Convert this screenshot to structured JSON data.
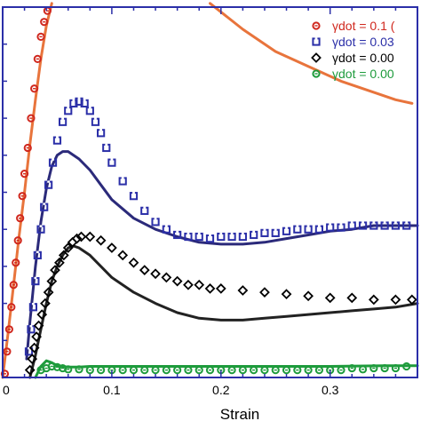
{
  "chart_data": {
    "type": "scatter",
    "title": "",
    "xlabel": "Strain",
    "ylabel": "",
    "xlim": [
      0,
      0.38
    ],
    "ylim": [
      0,
      1
    ],
    "x_ticks": [
      {
        "value": 0,
        "label": "0"
      },
      {
        "value": 0.1,
        "label": "0.1"
      },
      {
        "value": 0.2,
        "label": "0.2"
      },
      {
        "value": 0.3,
        "label": "0.3"
      }
    ],
    "grid": false,
    "legend_position": "top-right",
    "frame_color": "#2b2fa8",
    "series": [
      {
        "name": "γdot = 0.1 (",
        "kind": "markers",
        "marker": "circle-dot",
        "color": "#d0281e",
        "x": [
          0.002,
          0.004,
          0.006,
          0.008,
          0.01,
          0.012,
          0.014,
          0.016,
          0.018,
          0.02,
          0.023,
          0.026,
          0.029,
          0.032,
          0.035,
          0.038,
          0.041
        ],
        "y": [
          0.01,
          0.07,
          0.13,
          0.19,
          0.25,
          0.31,
          0.37,
          0.43,
          0.49,
          0.55,
          0.62,
          0.7,
          0.78,
          0.86,
          0.92,
          0.96,
          0.99
        ]
      },
      {
        "name": "γdot = 0.03",
        "kind": "markers",
        "marker": "square-notch",
        "color": "#2b2fa8",
        "x": [
          0.024,
          0.026,
          0.028,
          0.03,
          0.032,
          0.035,
          0.038,
          0.042,
          0.046,
          0.05,
          0.055,
          0.06,
          0.065,
          0.07,
          0.075,
          0.08,
          0.085,
          0.09,
          0.095,
          0.1,
          0.11,
          0.12,
          0.13,
          0.14,
          0.15,
          0.16,
          0.17,
          0.18,
          0.19,
          0.2,
          0.21,
          0.22,
          0.23,
          0.24,
          0.25,
          0.26,
          0.27,
          0.28,
          0.29,
          0.3,
          0.31,
          0.32,
          0.33,
          0.34,
          0.35,
          0.36,
          0.37
        ],
        "y": [
          0.07,
          0.13,
          0.19,
          0.26,
          0.33,
          0.4,
          0.46,
          0.52,
          0.58,
          0.64,
          0.69,
          0.72,
          0.74,
          0.745,
          0.74,
          0.72,
          0.69,
          0.66,
          0.62,
          0.58,
          0.53,
          0.49,
          0.45,
          0.42,
          0.4,
          0.385,
          0.38,
          0.38,
          0.375,
          0.38,
          0.38,
          0.38,
          0.385,
          0.39,
          0.39,
          0.395,
          0.4,
          0.4,
          0.4,
          0.405,
          0.405,
          0.41,
          0.41,
          0.41,
          0.41,
          0.41,
          0.41
        ]
      },
      {
        "name": "γdot = 0.00",
        "kind": "markers",
        "marker": "diamond",
        "color": "#000000",
        "x": [
          0.025,
          0.027,
          0.029,
          0.031,
          0.033,
          0.036,
          0.039,
          0.042,
          0.045,
          0.048,
          0.052,
          0.056,
          0.06,
          0.064,
          0.068,
          0.072,
          0.08,
          0.09,
          0.1,
          0.11,
          0.12,
          0.13,
          0.14,
          0.15,
          0.16,
          0.17,
          0.18,
          0.19,
          0.2,
          0.22,
          0.24,
          0.26,
          0.28,
          0.3,
          0.32,
          0.34,
          0.36,
          0.375
        ],
        "y": [
          0.02,
          0.05,
          0.08,
          0.11,
          0.14,
          0.17,
          0.2,
          0.23,
          0.26,
          0.29,
          0.31,
          0.33,
          0.35,
          0.365,
          0.375,
          0.38,
          0.38,
          0.37,
          0.35,
          0.33,
          0.31,
          0.29,
          0.28,
          0.27,
          0.26,
          0.25,
          0.25,
          0.24,
          0.24,
          0.235,
          0.23,
          0.225,
          0.22,
          0.215,
          0.215,
          0.21,
          0.21,
          0.21
        ]
      },
      {
        "name": "γdot = 0.00",
        "kind": "markers",
        "marker": "circle-dot",
        "color": "#1e9b3c",
        "x": [
          0.035,
          0.04,
          0.045,
          0.05,
          0.055,
          0.06,
          0.07,
          0.08,
          0.09,
          0.1,
          0.11,
          0.12,
          0.13,
          0.14,
          0.15,
          0.16,
          0.17,
          0.18,
          0.19,
          0.2,
          0.21,
          0.22,
          0.23,
          0.24,
          0.25,
          0.26,
          0.27,
          0.28,
          0.29,
          0.3,
          0.31,
          0.32,
          0.33,
          0.34,
          0.35,
          0.36,
          0.37
        ],
        "y": [
          0.02,
          0.025,
          0.03,
          0.028,
          0.025,
          0.022,
          0.022,
          0.02,
          0.02,
          0.02,
          0.02,
          0.02,
          0.02,
          0.02,
          0.02,
          0.02,
          0.02,
          0.02,
          0.02,
          0.02,
          0.02,
          0.02,
          0.02,
          0.02,
          0.02,
          0.02,
          0.02,
          0.02,
          0.02,
          0.02,
          0.02,
          0.025,
          0.022,
          0.025,
          0.025,
          0.025,
          0.03
        ]
      },
      {
        "name": "",
        "kind": "line",
        "color": "#e8743c",
        "x": [
          0,
          0.005,
          0.01,
          0.015,
          0.02,
          0.025,
          0.03,
          0.035,
          0.04,
          0.045
        ],
        "y": [
          0.0,
          0.12,
          0.25,
          0.38,
          0.5,
          0.63,
          0.75,
          0.86,
          0.95,
          1.01
        ]
      },
      {
        "name": "",
        "kind": "line",
        "color": "#e8743c",
        "x": [
          0.19,
          0.22,
          0.25,
          0.28,
          0.31,
          0.34,
          0.36,
          0.375
        ],
        "y": [
          1.01,
          0.94,
          0.88,
          0.84,
          0.8,
          0.77,
          0.75,
          0.74
        ]
      },
      {
        "name": "",
        "kind": "line",
        "color": "#2b2a7a",
        "x": [
          0.022,
          0.025,
          0.03,
          0.035,
          0.04,
          0.045,
          0.05,
          0.055,
          0.06,
          0.07,
          0.08,
          0.09,
          0.1,
          0.12,
          0.14,
          0.16,
          0.18,
          0.2,
          0.22,
          0.24,
          0.26,
          0.28,
          0.3,
          0.32,
          0.34,
          0.36,
          0.38
        ],
        "y": [
          0.05,
          0.15,
          0.3,
          0.42,
          0.51,
          0.57,
          0.6,
          0.61,
          0.61,
          0.59,
          0.56,
          0.52,
          0.48,
          0.43,
          0.4,
          0.38,
          0.365,
          0.36,
          0.36,
          0.365,
          0.375,
          0.385,
          0.395,
          0.4,
          0.41,
          0.41,
          0.41
        ]
      },
      {
        "name": "",
        "kind": "line",
        "color": "#222222",
        "x": [
          0.025,
          0.03,
          0.035,
          0.04,
          0.045,
          0.05,
          0.055,
          0.06,
          0.065,
          0.07,
          0.08,
          0.09,
          0.1,
          0.12,
          0.14,
          0.16,
          0.18,
          0.2,
          0.22,
          0.24,
          0.26,
          0.28,
          0.3,
          0.32,
          0.34,
          0.36,
          0.38
        ],
        "y": [
          0.0,
          0.06,
          0.13,
          0.2,
          0.26,
          0.3,
          0.33,
          0.35,
          0.355,
          0.35,
          0.33,
          0.3,
          0.27,
          0.23,
          0.2,
          0.175,
          0.16,
          0.155,
          0.155,
          0.16,
          0.165,
          0.17,
          0.175,
          0.18,
          0.185,
          0.19,
          0.2
        ]
      },
      {
        "name": "",
        "kind": "line",
        "color": "#1e9b3c",
        "x": [
          0.03,
          0.035,
          0.04,
          0.045,
          0.05,
          0.055,
          0.06,
          0.07,
          0.08,
          0.1,
          0.15,
          0.2,
          0.25,
          0.3,
          0.35,
          0.38
        ],
        "y": [
          0.0,
          0.03,
          0.045,
          0.04,
          0.032,
          0.03,
          0.028,
          0.028,
          0.03,
          0.03,
          0.03,
          0.03,
          0.03,
          0.03,
          0.032,
          0.032
        ]
      }
    ],
    "legend": [
      {
        "label": "γdot = 0.1 (",
        "series_index": 0
      },
      {
        "label": "γdot = 0.03",
        "series_index": 1
      },
      {
        "label": "γdot = 0.00",
        "series_index": 2
      },
      {
        "label": "γdot = 0.00",
        "series_index": 3
      }
    ]
  }
}
